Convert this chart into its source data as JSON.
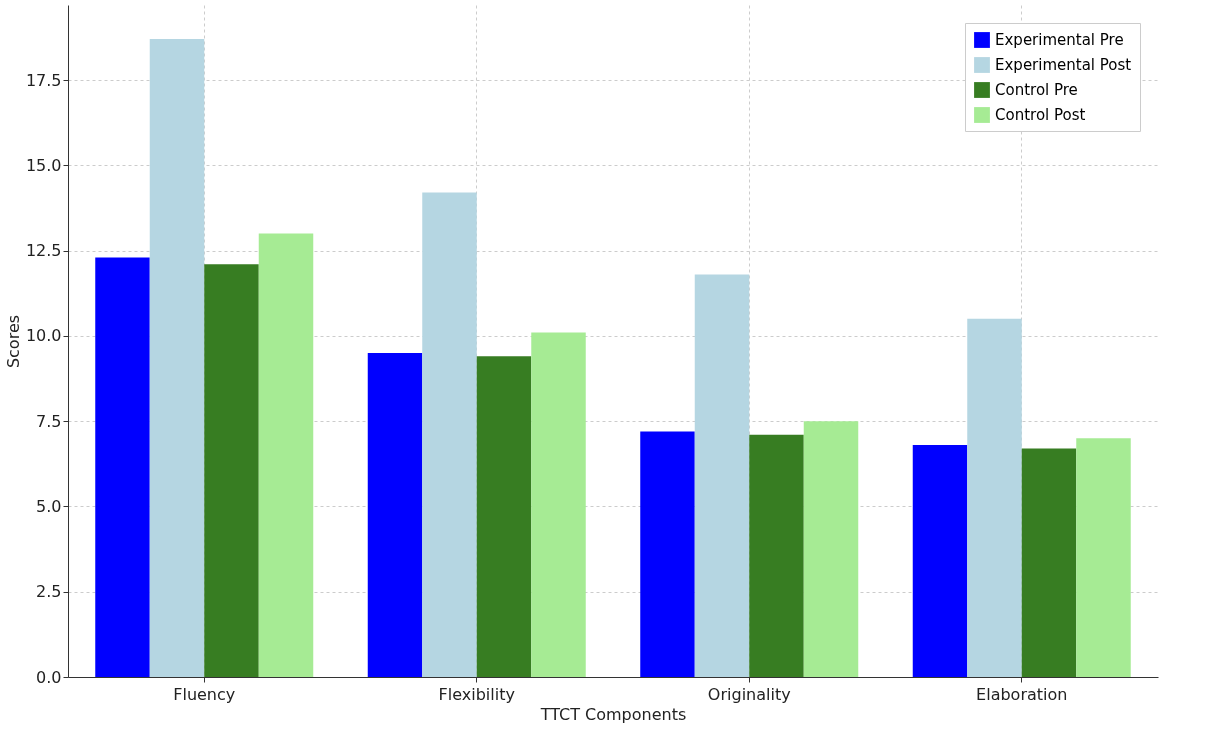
{
  "chart_data": {
    "type": "bar",
    "xlabel": "TTCT Components",
    "ylabel": "Scores",
    "categories": [
      "Fluency",
      "Flexibility",
      "Originality",
      "Elaboration"
    ],
    "series": [
      {
        "name": "Experimental Pre",
        "color": "#0000ff",
        "values": [
          12.3,
          9.5,
          7.2,
          6.8
        ]
      },
      {
        "name": "Experimental Post",
        "color": "#b5d6e2",
        "values": [
          18.7,
          14.2,
          11.8,
          10.5
        ]
      },
      {
        "name": "Control Pre",
        "color": "#377d22",
        "values": [
          12.1,
          9.4,
          7.1,
          6.7
        ]
      },
      {
        "name": "Control Post",
        "color": "#a6eb94",
        "values": [
          13.0,
          10.1,
          7.5,
          7.0
        ]
      }
    ],
    "ylim": [
      0,
      19.7
    ],
    "yticks": [
      {
        "value": 0,
        "label": "0.0"
      },
      2.5,
      {
        "value": 5,
        "label": "5.0"
      },
      7.5,
      {
        "value": 10,
        "label": "10.0"
      },
      12.5,
      {
        "value": 15,
        "label": "15.0"
      },
      17.5
    ],
    "grid": true,
    "legend": "top right"
  }
}
